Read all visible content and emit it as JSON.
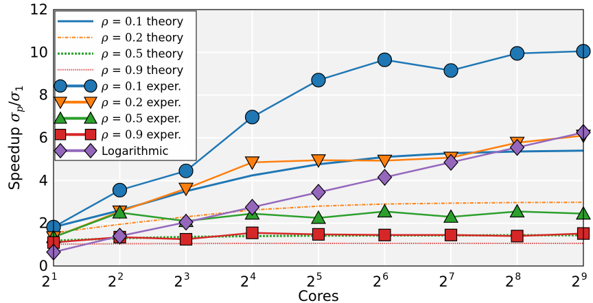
{
  "chart_data": {
    "type": "line",
    "title": "",
    "xlabel": "Cores",
    "ylabel": "Speedup σ_p/σ_1",
    "ylabel_parts": {
      "main": "Speedup ",
      "sym1": "σ",
      "sub1": "p",
      "slash": "/",
      "sym2": "σ",
      "sub2": "1"
    },
    "x_scale": "log2",
    "x": [
      2,
      4,
      8,
      16,
      32,
      64,
      128,
      256,
      512
    ],
    "xticks": [
      {
        "base": "2",
        "exp": "1"
      },
      {
        "base": "2",
        "exp": "2"
      },
      {
        "base": "2",
        "exp": "3"
      },
      {
        "base": "2",
        "exp": "4"
      },
      {
        "base": "2",
        "exp": "5"
      },
      {
        "base": "2",
        "exp": "6"
      },
      {
        "base": "2",
        "exp": "7"
      },
      {
        "base": "2",
        "exp": "8"
      },
      {
        "base": "2",
        "exp": "9"
      }
    ],
    "ylim": [
      0,
      12
    ],
    "yticks": [
      "0",
      "2",
      "4",
      "6",
      "8",
      "10",
      "12"
    ],
    "grid": true,
    "legend_position": "top-left",
    "series": [
      {
        "name": "ρ = 0.1 theory",
        "legend": {
          "sym": "ρ",
          "eq": " = 0.1",
          "tail": " theory"
        },
        "kind": "theory",
        "color": "#1f77b4",
        "dash": "solid",
        "values": [
          1.82,
          2.6,
          3.5,
          4.24,
          4.76,
          5.1,
          5.28,
          5.36,
          5.4
        ]
      },
      {
        "name": "ρ = 0.2 theory",
        "legend": {
          "sym": "ρ",
          "eq": " = 0.2",
          "tail": " theory"
        },
        "kind": "theory",
        "color": "#ff7f0e",
        "dash": "dashdot",
        "values": [
          1.55,
          1.95,
          2.3,
          2.62,
          2.8,
          2.9,
          2.94,
          2.97,
          2.98
        ]
      },
      {
        "name": "ρ = 0.5 theory",
        "legend": {
          "sym": "ρ",
          "eq": " = 0.5",
          "tail": " theory"
        },
        "kind": "theory",
        "color": "#2ca02c",
        "dash": "dotted",
        "values": [
          1.18,
          1.3,
          1.36,
          1.4,
          1.42,
          1.43,
          1.43,
          1.44,
          1.44
        ]
      },
      {
        "name": "ρ = 0.9 theory",
        "legend": {
          "sym": "ρ",
          "eq": " = 0.9",
          "tail": " theory"
        },
        "kind": "theory",
        "color": "#d62728",
        "dash": "finedot",
        "values": [
          1.02,
          1.04,
          1.05,
          1.06,
          1.06,
          1.06,
          1.06,
          1.06,
          1.06
        ]
      },
      {
        "name": "ρ = 0.1 exper.",
        "legend": {
          "sym": "ρ",
          "eq": " = 0.1",
          "tail": " exper."
        },
        "kind": "exper",
        "color": "#1f77b4",
        "marker": "circle",
        "values": [
          1.82,
          3.55,
          4.45,
          6.97,
          8.7,
          9.65,
          9.15,
          9.95,
          10.05
        ]
      },
      {
        "name": "ρ = 0.2 exper.",
        "legend": {
          "sym": "ρ",
          "eq": " = 0.2",
          "tail": " exper."
        },
        "kind": "exper",
        "color": "#ff7f0e",
        "marker": "triangle-down",
        "values": [
          1.35,
          2.55,
          3.62,
          4.85,
          4.95,
          4.93,
          5.07,
          5.77,
          6.1
        ]
      },
      {
        "name": "ρ = 0.5 exper.",
        "legend": {
          "sym": "ρ",
          "eq": " = 0.5",
          "tail": " exper."
        },
        "kind": "exper",
        "color": "#2ca02c",
        "marker": "triangle-up",
        "values": [
          1.35,
          2.5,
          2.1,
          2.45,
          2.25,
          2.55,
          2.3,
          2.55,
          2.45
        ]
      },
      {
        "name": "ρ = 0.9 exper.",
        "legend": {
          "sym": "ρ",
          "eq": " = 0.9",
          "tail": " exper."
        },
        "kind": "exper",
        "color": "#d62728",
        "marker": "square",
        "values": [
          1.1,
          1.35,
          1.25,
          1.55,
          1.48,
          1.45,
          1.45,
          1.4,
          1.52
        ]
      },
      {
        "name": "Logarithmic",
        "legend": {
          "sym": "",
          "eq": "",
          "tail": "Logarithmic"
        },
        "kind": "exper",
        "color": "#9467bd",
        "marker": "diamond",
        "values": [
          0.65,
          1.4,
          2.05,
          2.75,
          3.45,
          4.15,
          4.85,
          5.55,
          6.25
        ]
      }
    ]
  }
}
